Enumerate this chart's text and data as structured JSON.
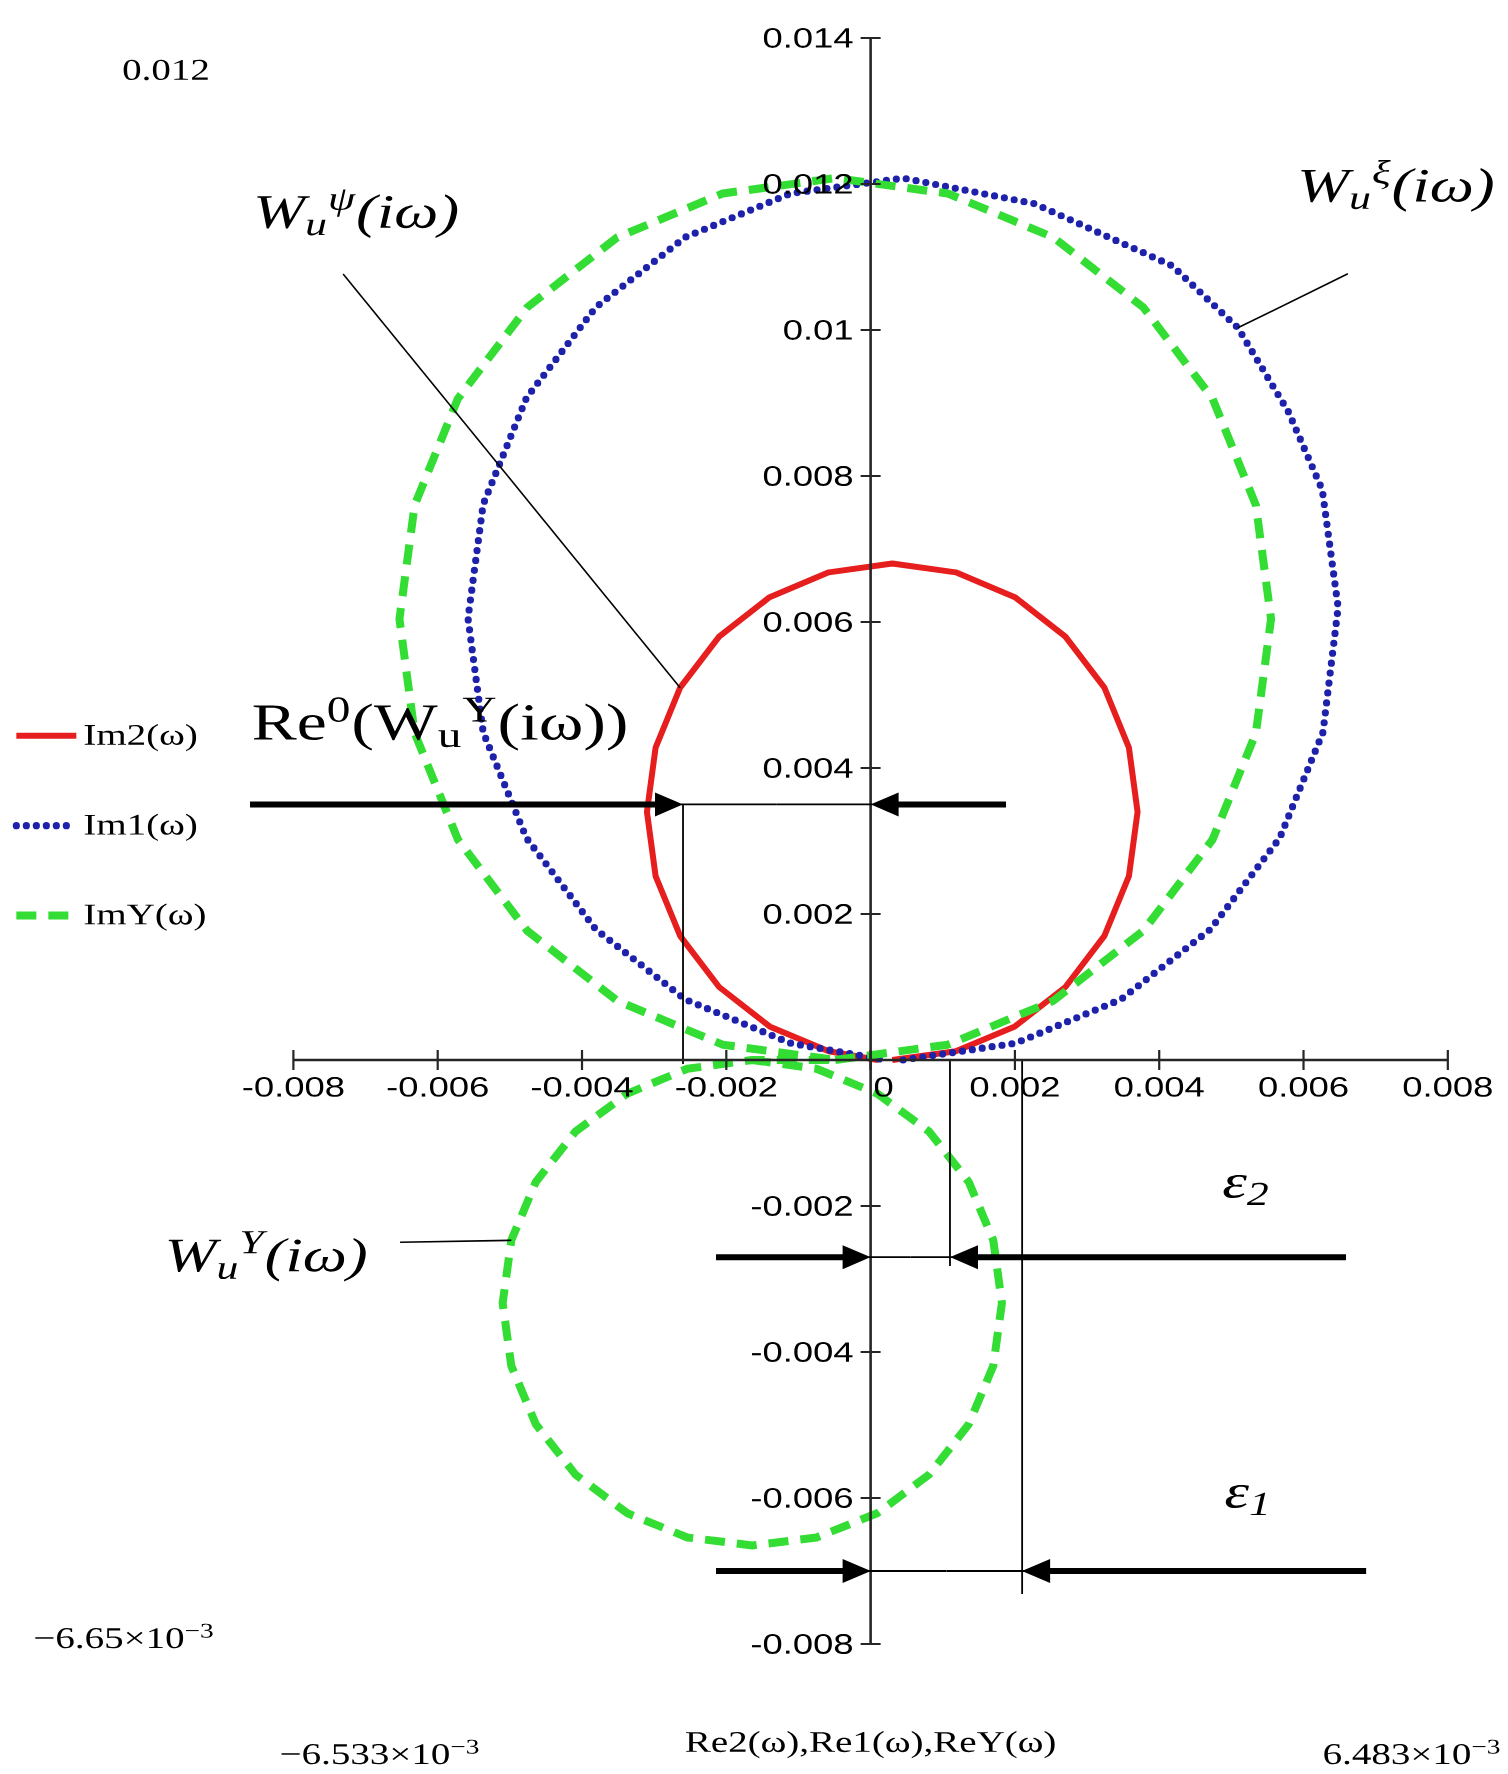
{
  "chart_data": {
    "type": "line",
    "xlabel": "Re2(ω),Re1(ω),ReY(ω)",
    "xlim": [
      -0.008,
      0.008
    ],
    "ylim": [
      -0.008,
      0.014
    ],
    "xticks": [
      -0.008,
      -0.006,
      -0.004,
      -0.002,
      0,
      0.002,
      0.004,
      0.006,
      0.008
    ],
    "yticks": [
      -0.008,
      -0.006,
      -0.004,
      -0.002,
      0.002,
      0.004,
      0.006,
      0.008,
      0.01,
      0.012,
      0.014
    ],
    "legend": "left",
    "series": [
      {
        "name": "Im2(ω)",
        "color": "#e61e1e",
        "line_style": "solid",
        "x": [
          0.0003,
          0.00118,
          0.002,
          0.0027,
          0.00324,
          0.00358,
          0.0037,
          0.00358,
          0.00324,
          0.0027,
          0.002,
          0.00118,
          0.0003,
          -0.00058,
          -0.0014,
          -0.0021,
          -0.00264,
          -0.00298,
          -0.0031,
          -0.00298,
          -0.00264,
          -0.0021,
          -0.0014,
          -0.00058,
          0.0001
        ],
        "values": [
          0,
          0.00012,
          0.00046,
          0.001,
          0.0017,
          0.00252,
          0.0034,
          0.00428,
          0.0051,
          0.0058,
          0.00634,
          0.00668,
          0.0068,
          0.00668,
          0.00634,
          0.0058,
          0.0051,
          0.00428,
          0.0034,
          0.00252,
          0.0017,
          0.001,
          0.00046,
          0.00012,
          0
        ]
      },
      {
        "name": "Im1(ω)",
        "color": "#1e22aa",
        "line_style": "dotted",
        "x": [
          0.00045,
          0.00201,
          0.00347,
          0.00471,
          0.00567,
          0.00627,
          0.00648,
          0.00626,
          0.00579,
          0.00509,
          0.00418,
          0.00227,
          0.00045,
          -0.00111,
          -0.00257,
          -0.00381,
          -0.00477,
          -0.00537,
          -0.00558,
          -0.00537,
          -0.00477,
          -0.00381,
          -0.00257,
          -0.00111,
          0.0002
        ],
        "values": [
          0,
          0.00023,
          0.00083,
          0.00179,
          0.00304,
          0.00449,
          0.0062,
          0.00781,
          0.00888,
          0.01003,
          0.01088,
          0.01173,
          0.01208,
          0.01187,
          0.01127,
          0.01031,
          0.00907,
          0.00761,
          0.00605,
          0.00449,
          0.00304,
          0.00179,
          0.00083,
          0.00023,
          0
        ]
      },
      {
        "name": "ImY(ω)",
        "color": "#33dd33",
        "line_style": "dashed",
        "x": [
          -0.00049,
          0.00107,
          0.00253,
          0.00378,
          0.00474,
          0.00534,
          0.00555,
          0.00534,
          0.00474,
          0.00378,
          0.00253,
          0.00107,
          -0.00049,
          -0.00205,
          -0.00351,
          -0.00476,
          -0.00572,
          -0.00632,
          -0.00653,
          -0.00632,
          -0.00572,
          -0.00476,
          -0.00351,
          -0.00205,
          -0.00049,
          -0.00164,
          -0.00254,
          -0.00337,
          -0.00409,
          -0.00464,
          -0.00498,
          -0.0051,
          -0.00498,
          -0.00464,
          -0.00409,
          -0.00337,
          -0.00254,
          -0.00164,
          -0.00075,
          9e-05,
          0.00081,
          0.00136,
          0.0017,
          0.00182,
          0.0017,
          0.00136,
          0.00081,
          9e-05,
          -0.00075,
          -0.00164
        ],
        "values": [
          0,
          0.00021,
          0.00081,
          0.00177,
          0.00302,
          0.00448,
          0.00604,
          0.0076,
          0.00906,
          0.01031,
          0.01127,
          0.01187,
          0.01208,
          0.01187,
          0.01127,
          0.01031,
          0.00906,
          0.0076,
          0.00604,
          0.00448,
          0.00302,
          0.00177,
          0.00081,
          0.00021,
          0,
          0,
          -0.00012,
          -0.00046,
          -0.00098,
          -0.00167,
          -0.00247,
          -0.00333,
          -0.00419,
          -0.00499,
          -0.00568,
          -0.00621,
          -0.00654,
          -0.00665,
          -0.00654,
          -0.00621,
          -0.00568,
          -0.00499,
          -0.00419,
          -0.00333,
          -0.00247,
          -0.00167,
          -0.00098,
          -0.00046,
          -0.00012,
          0
        ]
      }
    ],
    "ref_lines": [
      {
        "axis": "x",
        "value": -0.0026,
        "label": "Re$^{0}$(W$_{u}$$^{Y}$(iω))",
        "color": "#000000"
      },
      {
        "axis": "x",
        "value": 0.0011,
        "color": "#000000"
      },
      {
        "axis": "x",
        "value": 0.0021,
        "color": "#000000"
      }
    ],
    "annotations": [
      {
        "text": "W$_{u}$$^{ψ}$(iω)",
        "x": -0.00264,
        "y": 0.0051
      },
      {
        "text": "W$_{u}$$^{ξ}$(iω)",
        "x": 0.00509,
        "y": 0.01003
      },
      {
        "text": "W$_{u}$$^{Y}$(iω)",
        "x": -0.00498,
        "y": -0.00247
      },
      "ε$_{2}$",
      "ε$_{1}$",
      "0.012",
      "−6.65×10$^{−3}$",
      "−6.533×10$^{−3}$",
      "6.483×10$^{−3}$"
    ]
  }
}
